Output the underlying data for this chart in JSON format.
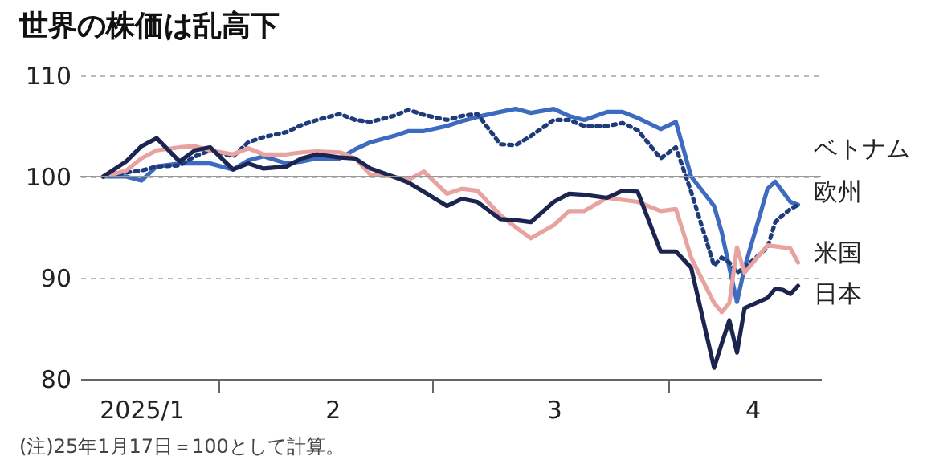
{
  "chart_data": {
    "type": "line",
    "title": "世界の株価は乱高下",
    "annotations": [
      "(注)25年1月17日＝100として計算。"
    ],
    "x": [
      "2025-01-17",
      "2025-01-20",
      "2025-01-22",
      "2025-01-24",
      "2025-01-27",
      "2025-01-29",
      "2025-01-31",
      "2025-02-03",
      "2025-02-05",
      "2025-02-07",
      "2025-02-10",
      "2025-02-12",
      "2025-02-14",
      "2025-02-17",
      "2025-02-19",
      "2025-02-21",
      "2025-02-24",
      "2025-02-26",
      "2025-02-28",
      "2025-03-03",
      "2025-03-05",
      "2025-03-07",
      "2025-03-10",
      "2025-03-12",
      "2025-03-14",
      "2025-03-17",
      "2025-03-19",
      "2025-03-21",
      "2025-03-24",
      "2025-03-26",
      "2025-03-28",
      "2025-03-31",
      "2025-04-02",
      "2025-04-04",
      "2025-04-07",
      "2025-04-08",
      "2025-04-09",
      "2025-04-10",
      "2025-04-11",
      "2025-04-14",
      "2025-04-15",
      "2025-04-16",
      "2025-04-17",
      "2025-04-18"
    ],
    "series": [
      {
        "name": "ベトナム",
        "color": "#3d6bbf",
        "values": [
          100,
          100,
          99.6,
          101,
          101.3,
          101.3,
          101.3,
          100.7,
          101.6,
          102,
          101.3,
          101.5,
          101.8,
          101.8,
          102.7,
          103.4,
          104,
          104.5,
          104.5,
          105,
          105.5,
          105.9,
          106.4,
          106.7,
          106.3,
          106.7,
          106,
          105.6,
          106.4,
          106.4,
          105.8,
          104.7,
          105.4,
          100,
          97.1,
          94.5,
          91,
          87.6,
          91,
          98.8,
          99.5,
          98.5,
          97.5,
          97.2
        ]
      },
      {
        "name": "欧州",
        "color": "#1f3b7a",
        "line_style": "dotted",
        "values": [
          100,
          100.4,
          100.6,
          101,
          101.1,
          102,
          102.6,
          102,
          103.4,
          103.9,
          104.4,
          105.1,
          105.6,
          106.2,
          105.6,
          105.4,
          106,
          106.6,
          106.1,
          105.6,
          106,
          106.2,
          103.2,
          103.1,
          104,
          105.6,
          105.6,
          105,
          105,
          105.3,
          104.6,
          101.8,
          102.9,
          98.5,
          91.2,
          92,
          91.5,
          90.5,
          91,
          93,
          95.5,
          96.2,
          96.8,
          97.2
        ]
      },
      {
        "name": "米国",
        "color": "#e8a3a0",
        "values": [
          100,
          100.6,
          101.8,
          102.6,
          102.9,
          103,
          102.6,
          102.2,
          102.8,
          102.2,
          102.2,
          102.4,
          102.5,
          102.4,
          101.8,
          100.2,
          100,
          99.7,
          100.5,
          98.3,
          98.8,
          98.6,
          96.2,
          95,
          93.9,
          95.2,
          96.6,
          96.6,
          97.9,
          97.7,
          97.5,
          96.6,
          96.8,
          92,
          87.5,
          86.6,
          87.5,
          93,
          90.5,
          93.2,
          93.1,
          93,
          92.9,
          91.5
        ]
      },
      {
        "name": "日本",
        "color": "#1b2550",
        "values": [
          100,
          101.5,
          103,
          103.8,
          101.5,
          102.6,
          102.9,
          100.7,
          101.3,
          100.8,
          101,
          101.8,
          102.2,
          101.9,
          101.8,
          100.8,
          100,
          99.4,
          98.5,
          97.1,
          97.8,
          97.5,
          95.8,
          95.7,
          95.5,
          97.5,
          98.3,
          98.2,
          97.9,
          98.6,
          98.5,
          92.6,
          92.6,
          91,
          81.1,
          83.5,
          85.8,
          82.6,
          87,
          88,
          88.9,
          88.8,
          88.4,
          89.2
        ]
      }
    ],
    "xlim": [
      "2025-01-14",
      "2025-04-21"
    ],
    "xticks": [
      {
        "value": "2025-01-22",
        "label": "2025/1"
      },
      {
        "value": "2025-02-01",
        "label": null
      },
      {
        "value": "2025-02-16",
        "label": "2"
      },
      {
        "value": "2025-03-01",
        "label": null
      },
      {
        "value": "2025-03-17",
        "label": "3"
      },
      {
        "value": "2025-04-01",
        "label": null
      },
      {
        "value": "2025-04-12",
        "label": "4"
      }
    ],
    "ylim": [
      80,
      110
    ],
    "yticks": [
      80,
      90,
      100,
      110
    ],
    "grid": "y",
    "ref_lines": [
      {
        "axis": "y",
        "value": 100,
        "label": null,
        "color": "#999999"
      }
    ]
  }
}
